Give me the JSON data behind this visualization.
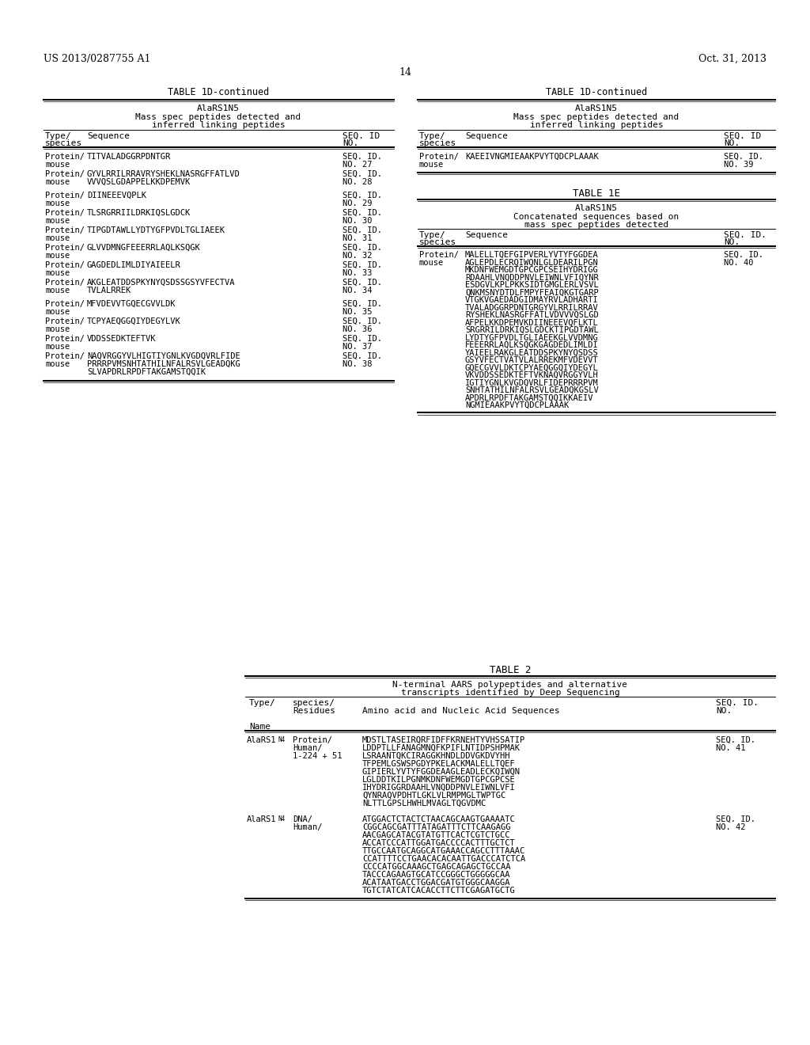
{
  "bg_color": "#ffffff",
  "text_color": "#000000",
  "header_left": "US 2013/0287755 A1",
  "header_right": "Oct. 31, 2013",
  "page_num": "14",
  "left_table_title": "TABLE 1D-continued",
  "right_table_title": "TABLE 1D-continued",
  "left_col_header1": "AlaRS1",
  "left_col_header1_sup": "N5",
  "left_col_header2": "Mass spec peptides detected and",
  "left_col_header3": "inferred linking peptides",
  "left_type_label": "Type/",
  "left_species_label": "species",
  "left_seq_label": "Sequence",
  "left_seqid_label": "SEQ. ID",
  "left_seqid_label2": "NO.",
  "right_col_header1": "AlaRS1",
  "right_col_header1_sup": "N5",
  "right_col_header2": "Mass spec peptides detected and",
  "right_col_header3": "inferred linking peptides",
  "right_type_label": "Type/",
  "right_species_label": "species",
  "right_seq_label": "Sequence",
  "right_seqid_label": "SEQ. ID",
  "right_seqid_label2": "NO.",
  "left_rows": [
    {
      "type": "Protein/",
      "species": "mouse",
      "sequence": "TITVALADGGRPDNTGR",
      "seq_id": "SEQ. ID.",
      "seq_no": "NO. 27"
    },
    {
      "type": "Protein/",
      "species": "mouse",
      "sequence": "GYVLRRILRRAVRYSHEKLNASRGFFATLVD",
      "seq_id": "SEQ. ID.",
      "seq_no": "NO. 28",
      "seq2": "VVVQSLGDAPPELKKDPEMVK"
    },
    {
      "type": "Protein/",
      "species": "mouse",
      "sequence": "DIINEEEVQPLK",
      "seq_id": "SEQ. ID.",
      "seq_no": "NO. 29"
    },
    {
      "type": "Protein/",
      "species": "mouse",
      "sequence": "TLSRGRRIILDRKIQSLGDCK",
      "seq_id": "SEQ. ID.",
      "seq_no": "NO. 30"
    },
    {
      "type": "Protein/",
      "species": "mouse",
      "sequence": "TIPGDTAWLLYDTYGFPVDLTGLIAEEK",
      "seq_id": "SEQ. ID.",
      "seq_no": "NO. 31"
    },
    {
      "type": "Protein/",
      "species": "mouse",
      "sequence": "GLVVDMNGFEEERRLAQLKSQGK",
      "seq_id": "SEQ. ID.",
      "seq_no": "NO. 32"
    },
    {
      "type": "Protein/",
      "species": "mouse",
      "sequence": "GAGDEDLIMLDIYAIEELR",
      "seq_id": "SEQ. ID.",
      "seq_no": "NO. 33"
    },
    {
      "type": "Protein/",
      "species": "mouse",
      "sequence": "AKGLEATDDSPKYNYQSDSSGSYVFECTVA",
      "seq_id": "SEQ. ID.",
      "seq_no": "NO. 34",
      "seq2": "TVLALRREK"
    },
    {
      "type": "Protein/",
      "species": "mouse",
      "sequence": "MFVDEVVTGQECGVVLDK",
      "seq_id": "SEQ. ID.",
      "seq_no": "NO. 35"
    },
    {
      "type": "Protein/",
      "species": "mouse",
      "sequence": "TCPYAEQGGQIYDEGYLVK",
      "seq_id": "SEQ. ID.",
      "seq_no": "NO. 36"
    },
    {
      "type": "Protein/",
      "species": "mouse",
      "sequence": "VDDSSEDKTEFTVK",
      "seq_id": "SEQ. ID.",
      "seq_no": "NO. 37"
    },
    {
      "type": "Protein/",
      "species": "mouse",
      "sequence": "NAQVRGGYVLHIGTIYGNLKVGDQVRLFIDE",
      "seq_id": "SEQ. ID.",
      "seq_no": "NO. 38",
      "seq2": "PRRRPVMSNHTATHILNFALRSVLGEADQKG",
      "seq3": "SLVAPDRLRPDFTAKGAMSTQQIK"
    }
  ],
  "right_rows": [
    {
      "type": "Protein/",
      "species": "mouse",
      "sequence": "KAEEIVNGMIEAAKPVYTQDCPLAAAK",
      "seq_id": "SEQ. ID.",
      "seq_no": "NO. 39"
    }
  ],
  "table1e_title": "TABLE 1E",
  "table1e_col_header1": "AlaRS1",
  "table1e_col_header1_sup": "N5",
  "table1e_col_header2": "Concatenated sequences based on",
  "table1e_col_header3": "mass spec peptides detected",
  "table1e_type_label": "Type/",
  "table1e_species_label": "species",
  "table1e_seq_label": "Sequence",
  "table1e_seqid_label": "SEQ. ID.",
  "table1e_seqid_label2": "NO.",
  "table1e_rows": [
    {
      "type": "Protein/",
      "species": "mouse",
      "sequences": [
        "MALELLTQEFGIPVERLYVTYFGGDEA",
        "AGLEPDLECRQIWQNLGLDEARILPGN",
        "MKDNFWEMGDTGPCGPCSEIHYDRIGG",
        "RDAAHLVNQDDPNVLEIWNLVFIQYNR",
        "ESDGVLKPLPKKSIDTGMGLERLVSVL",
        "QNKMSNYDTDLFMPYFEAIQKGTGARP",
        "VTGKVGAEDADGIDMAYRVLADHARTI",
        "TVALADGGRPDNTGRGYVLRRILRRAV",
        "RYSHEKLNASRGFFATLVDVVVQSLGD",
        "AFPELKKDPEMVKDIINEEEVQFLKTL",
        "SRGRRILDRKIQSLGDCKTIPGDTAWL",
        "LYDTYGFPVDLTGLIAEEKGLVVDMNG",
        "FEEERRLAQLKSQGKGAGDEDLIMLDI",
        "YAIEELRAKGLEATDDSPKYNYQSDSS",
        "GSYVFECTVATVLALRREKMFVDEVVT",
        "GQECGVVLDKTCPYAEQGGQIYDEGYL",
        "VKVDDSSEDKTEFTVKNAQVRGGYVLH",
        "IGTIYGNLKVGDQVRLFIDEPRRRPVM",
        "SNHTATHILNFALRSVLGEADQKGSLV",
        "APDRLRPDFTAKGAMSTQQIKKAEIV",
        "NGMIEAAKPVYTQDCPLAAAK"
      ],
      "seq_id": "SEQ. ID.",
      "seq_no": "NO. 40"
    }
  ],
  "table2_title": "TABLE 2",
  "table2_col_header1": "N-terminal AARS polypeptides and alternative",
  "table2_col_header2": "transcripts identified by Deep Sequencing",
  "table2_name_label": "Name",
  "table2_type_label": "Type/",
  "table2_species_label": "species/",
  "table2_residues_label": "Residues",
  "table2_seq_label": "Amino acid and Nucleic Acid Sequences",
  "table2_seqid_label": "SEQ. ID.",
  "table2_seqid_label2": "NO.",
  "table2_rows": [
    {
      "name": "AlaRS1",
      "name_sup": "N4",
      "type": "Protein/",
      "species": "Human/",
      "residues": "1-224 + 51",
      "sequences": [
        "MDSTLTASEIRQRFIDFFKRNEHTYVHSSATIP",
        "LDDPTLLFANAGMNQFKPIFLNTIDPSHPMAK",
        "LSRAANTQKCIRAGGKHNDLDDVGKDVYHH",
        "TFPEMLGSWSPGDYPKELACKMALELLTQEF",
        "GIPIERLYVTYFGGDEAAGLEADLECKQIWQN",
        "LGLDDTKILPGNMKDNFWEMGDTGPCGPCSE",
        "IHYDRIGGRDA AHLVNQDDPNVLEIWNLVFI",
        "QYNRAQVPDHTLGKLVLRMPMGLTWPTGC",
        "NLTTLGPSLHWHLMVAGLTQGVDMC"
      ],
      "seq_id": "SEQ. ID.",
      "seq_no": "NO. 41"
    },
    {
      "name": "AlaRS1",
      "name_sup": "N4",
      "type": "DNA/",
      "species": "Human/",
      "residues": "",
      "sequences": [
        "ATGGACTCTACTCTAACAGCAAGTGAAAATC",
        "CGGCAGCGATTTATAGATTTCTTCAAGAGG",
        "AACGAGCATACGTATGTTCACTCGTCTGCC",
        "ACCATCCCATTGGATGACCCCACTTTGCTCT",
        "TTGCCAATGCAGGCATGAAACCAGCCAGTTTAAAC",
        "CCATTTTCCTGAACACACAATTGACCCATCTCA",
        "CCCCATGGCAAAGCTGAGCAGAGCTGCCAA",
        "TACCCAGAAGTGCATCCGGGCTGGGGGCAA",
        "ACATAATGACCTGGACGATGTGGGCAAGGA",
        "TGTCTATCATCACACCTTCTTCGAGATGCTG"
      ],
      "seq_id": "SEQ. ID.",
      "seq_no": "NO. 42"
    }
  ]
}
